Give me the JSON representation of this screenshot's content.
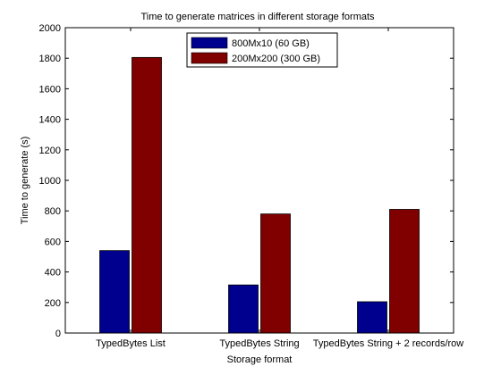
{
  "chart_data": {
    "type": "bar",
    "title": "Time to generate matrices in different storage formats",
    "xlabel": "Storage format",
    "ylabel": "Time to generate (s)",
    "ylim": [
      0,
      2000
    ],
    "yticks": [
      0,
      200,
      400,
      600,
      800,
      1000,
      1200,
      1400,
      1600,
      1800,
      2000
    ],
    "categories": [
      "TypedBytes List",
      "TypedBytes String",
      "TypedBytes String + 2 records/row"
    ],
    "series": [
      {
        "name": "800Mx10 (60 GB)",
        "color": "#00008f",
        "values": [
          540,
          315,
          205
        ]
      },
      {
        "name": "200Mx200 (300 GB)",
        "color": "#800000",
        "values": [
          1805,
          780,
          810
        ]
      }
    ],
    "legend": "top-center",
    "grid": false
  }
}
